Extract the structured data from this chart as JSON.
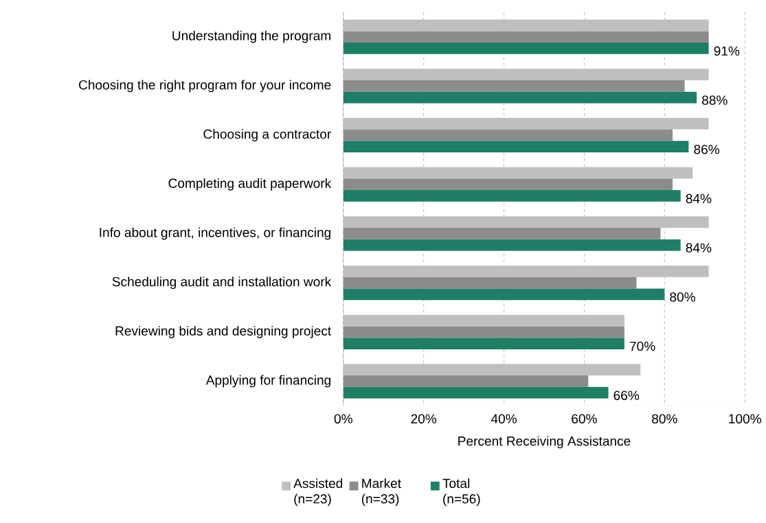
{
  "chart_data": {
    "type": "bar",
    "orientation": "horizontal",
    "xlabel": "Percent Receiving Assistance",
    "categories": [
      "Understanding the program",
      "Choosing the right program for your income",
      "Choosing a contractor",
      "Completing audit paperwork",
      "Info about grant, incentives, or financing",
      "Scheduling audit and installation work",
      "Reviewing bids and designing project",
      "Applying for financing"
    ],
    "series": [
      {
        "name": "Assisted (n=23)",
        "color": "#bfbfbf",
        "values": [
          91,
          91,
          91,
          87,
          91,
          91,
          70,
          74
        ]
      },
      {
        "name": "Market (n=33)",
        "color": "#8c8c8c",
        "values": [
          91,
          85,
          82,
          82,
          79,
          73,
          70,
          61
        ]
      },
      {
        "name": "Total (n=56)",
        "color": "#1f7f66",
        "values": [
          91,
          88,
          86,
          84,
          84,
          80,
          70,
          66
        ],
        "value_labels": [
          "91%",
          "88%",
          "86%",
          "84%",
          "84%",
          "80%",
          "70%",
          "66%"
        ]
      }
    ],
    "xlim": [
      0,
      100
    ],
    "xticks": [
      {
        "value": 0,
        "label": "0%"
      },
      {
        "value": 20,
        "label": "20%"
      },
      {
        "value": 40,
        "label": "40%"
      },
      {
        "value": 60,
        "label": "60%"
      },
      {
        "value": 80,
        "label": "80%"
      },
      {
        "value": 100,
        "label": "100%"
      }
    ],
    "grid": "x",
    "legend": "bottom"
  }
}
